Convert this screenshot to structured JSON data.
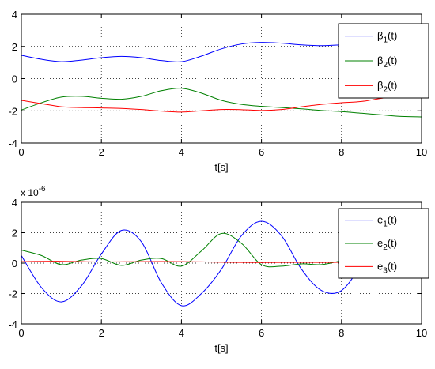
{
  "chart_data": [
    {
      "type": "line",
      "xlabel": "t[s]",
      "ylabel": "",
      "xlim": [
        0,
        10
      ],
      "ylim": [
        -4,
        4
      ],
      "xticks": [
        "0",
        "2",
        "4",
        "6",
        "8",
        "10"
      ],
      "yticks": [
        "-4",
        "-2",
        "0",
        "2",
        "4"
      ],
      "grid": true,
      "legend": "top-right",
      "series": [
        {
          "name": "β1(t)",
          "color": "#0000ff",
          "x": [
            0,
            0.5,
            1,
            1.5,
            2,
            2.5,
            3,
            3.5,
            4,
            4.5,
            5,
            5.5,
            6,
            6.5,
            7,
            7.5,
            8,
            8.5,
            9,
            9.5,
            10
          ],
          "values": [
            1.45,
            1.2,
            1.05,
            1.15,
            1.3,
            1.38,
            1.3,
            1.12,
            1.05,
            1.4,
            1.85,
            2.15,
            2.25,
            2.2,
            2.1,
            2.05,
            2.1,
            2.15,
            2.15,
            2.05,
            1.9
          ]
        },
        {
          "name": "β2(t)",
          "color": "#008000",
          "x": [
            0,
            0.5,
            1,
            1.5,
            2,
            2.5,
            3,
            3.5,
            4,
            4.5,
            5,
            5.5,
            6,
            6.5,
            7,
            7.5,
            8,
            8.5,
            9,
            9.5,
            10
          ],
          "values": [
            -1.95,
            -1.5,
            -1.15,
            -1.1,
            -1.22,
            -1.28,
            -1.1,
            -0.75,
            -0.6,
            -0.9,
            -1.35,
            -1.6,
            -1.72,
            -1.8,
            -1.88,
            -1.98,
            -2.05,
            -2.15,
            -2.25,
            -2.35,
            -2.38
          ]
        },
        {
          "name": "β2(t)",
          "color": "#ff0000",
          "x": [
            0,
            0.5,
            1,
            1.5,
            2,
            2.5,
            3,
            3.5,
            4,
            4.5,
            5,
            5.5,
            6,
            6.5,
            7,
            7.5,
            8,
            8.5,
            9,
            9.5,
            10
          ],
          "values": [
            -1.35,
            -1.55,
            -1.75,
            -1.8,
            -1.82,
            -1.85,
            -1.92,
            -2.02,
            -2.08,
            -2.0,
            -1.92,
            -1.93,
            -1.98,
            -1.92,
            -1.75,
            -1.6,
            -1.5,
            -1.42,
            -1.22,
            -1.05,
            -1.0
          ]
        }
      ],
      "legend_labels": [
        {
          "base": "β",
          "sub": "1",
          "tail": "(t)"
        },
        {
          "base": "β",
          "sub": "2",
          "tail": "(t)"
        },
        {
          "base": "β",
          "sub": "2",
          "tail": "(t)"
        }
      ]
    },
    {
      "type": "line",
      "xlabel": "t[s]",
      "ylabel": "",
      "xlim": [
        0,
        10
      ],
      "ylim": [
        -4,
        4
      ],
      "scale_label": {
        "base": "x 10",
        "exp": "-6"
      },
      "xticks": [
        "0",
        "2",
        "4",
        "6",
        "8",
        "10"
      ],
      "yticks": [
        "-4",
        "-2",
        "0",
        "2",
        "4"
      ],
      "grid": true,
      "legend": "top-right",
      "series": [
        {
          "name": "e1(t)",
          "color": "#0000ff",
          "x": [
            0,
            0.5,
            1,
            1.5,
            2,
            2.5,
            3,
            3.5,
            4,
            4.5,
            5,
            5.5,
            6,
            6.5,
            7,
            7.5,
            8,
            8.5,
            9,
            9.2,
            9.5,
            10
          ],
          "values": [
            0.5,
            -1.6,
            -2.55,
            -1.5,
            0.6,
            2.15,
            1.4,
            -1.3,
            -2.8,
            -2.0,
            -0.4,
            1.8,
            2.75,
            1.8,
            -0.4,
            -1.8,
            -1.8,
            0.0,
            2.8,
            3.5,
            2.5,
            0.3
          ]
        },
        {
          "name": "e2(t)",
          "color": "#008000",
          "x": [
            0,
            0.5,
            1,
            1.5,
            2,
            2.5,
            3,
            3.5,
            4,
            4.5,
            5,
            5.5,
            6,
            6.5,
            7,
            7.5,
            8,
            8.5,
            9,
            9.5,
            10
          ],
          "values": [
            0.85,
            0.5,
            -0.1,
            0.2,
            0.3,
            -0.15,
            0.2,
            0.3,
            -0.2,
            0.8,
            1.95,
            1.3,
            -0.1,
            -0.2,
            -0.05,
            -0.1,
            0.15,
            0.3,
            0.0,
            -0.2,
            0.1
          ]
        },
        {
          "name": "e3(t)",
          "color": "#ff0000",
          "x": [
            0,
            1,
            2,
            3,
            4,
            5,
            6,
            7,
            8,
            9,
            10
          ],
          "values": [
            0.1,
            0.12,
            0.08,
            0.1,
            0.1,
            0.06,
            0.04,
            0.05,
            0.05,
            0.08,
            0.1
          ]
        }
      ],
      "legend_labels": [
        {
          "base": "e",
          "sub": "1",
          "tail": "(t)"
        },
        {
          "base": "e",
          "sub": "2",
          "tail": "(t)"
        },
        {
          "base": "e",
          "sub": "3",
          "tail": "(t)"
        }
      ]
    }
  ]
}
